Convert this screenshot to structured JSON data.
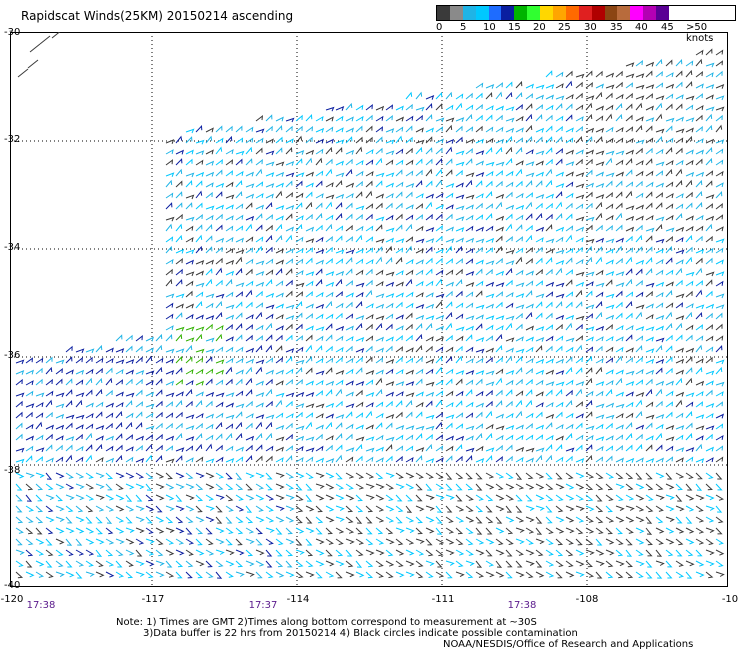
{
  "title": "Rapidscat Winds(25KM) 20150214 ascending",
  "legend": {
    "colors": [
      "#3a3a3a",
      "#8a8a8a",
      "#1fb4e6",
      "#00c8ff",
      "#1e6cff",
      "#0a1ea0",
      "#00b400",
      "#30ff30",
      "#ffd700",
      "#ffa500",
      "#ff6a00",
      "#e02020",
      "#b00000",
      "#8b4513",
      "#b86b3c",
      "#ff00ff",
      "#b400b4",
      "#5a0094"
    ],
    "labels": [
      "0",
      "5",
      "10",
      "15",
      "20",
      "25",
      "30",
      "35",
      "40",
      "45",
      ">50 knots"
    ]
  },
  "lat_labels": [
    "-30",
    "-32",
    "-34",
    "-36",
    "-38",
    "-40"
  ],
  "lon_labels": [
    "-120",
    "-117",
    "-114",
    "-111",
    "-108",
    "-10"
  ],
  "time_labels": [
    "17:38",
    "17:37",
    "17:38"
  ],
  "notes": [
    "Note: 1) Times are GMT 2)Times along bottom correspond to measurement at ~30S",
    "3)Data buffer is 22 hrs from 20150214 4) Black circles indicate possible contamination",
    "NOAA/NESDIS/Office of Research and Applications"
  ]
}
